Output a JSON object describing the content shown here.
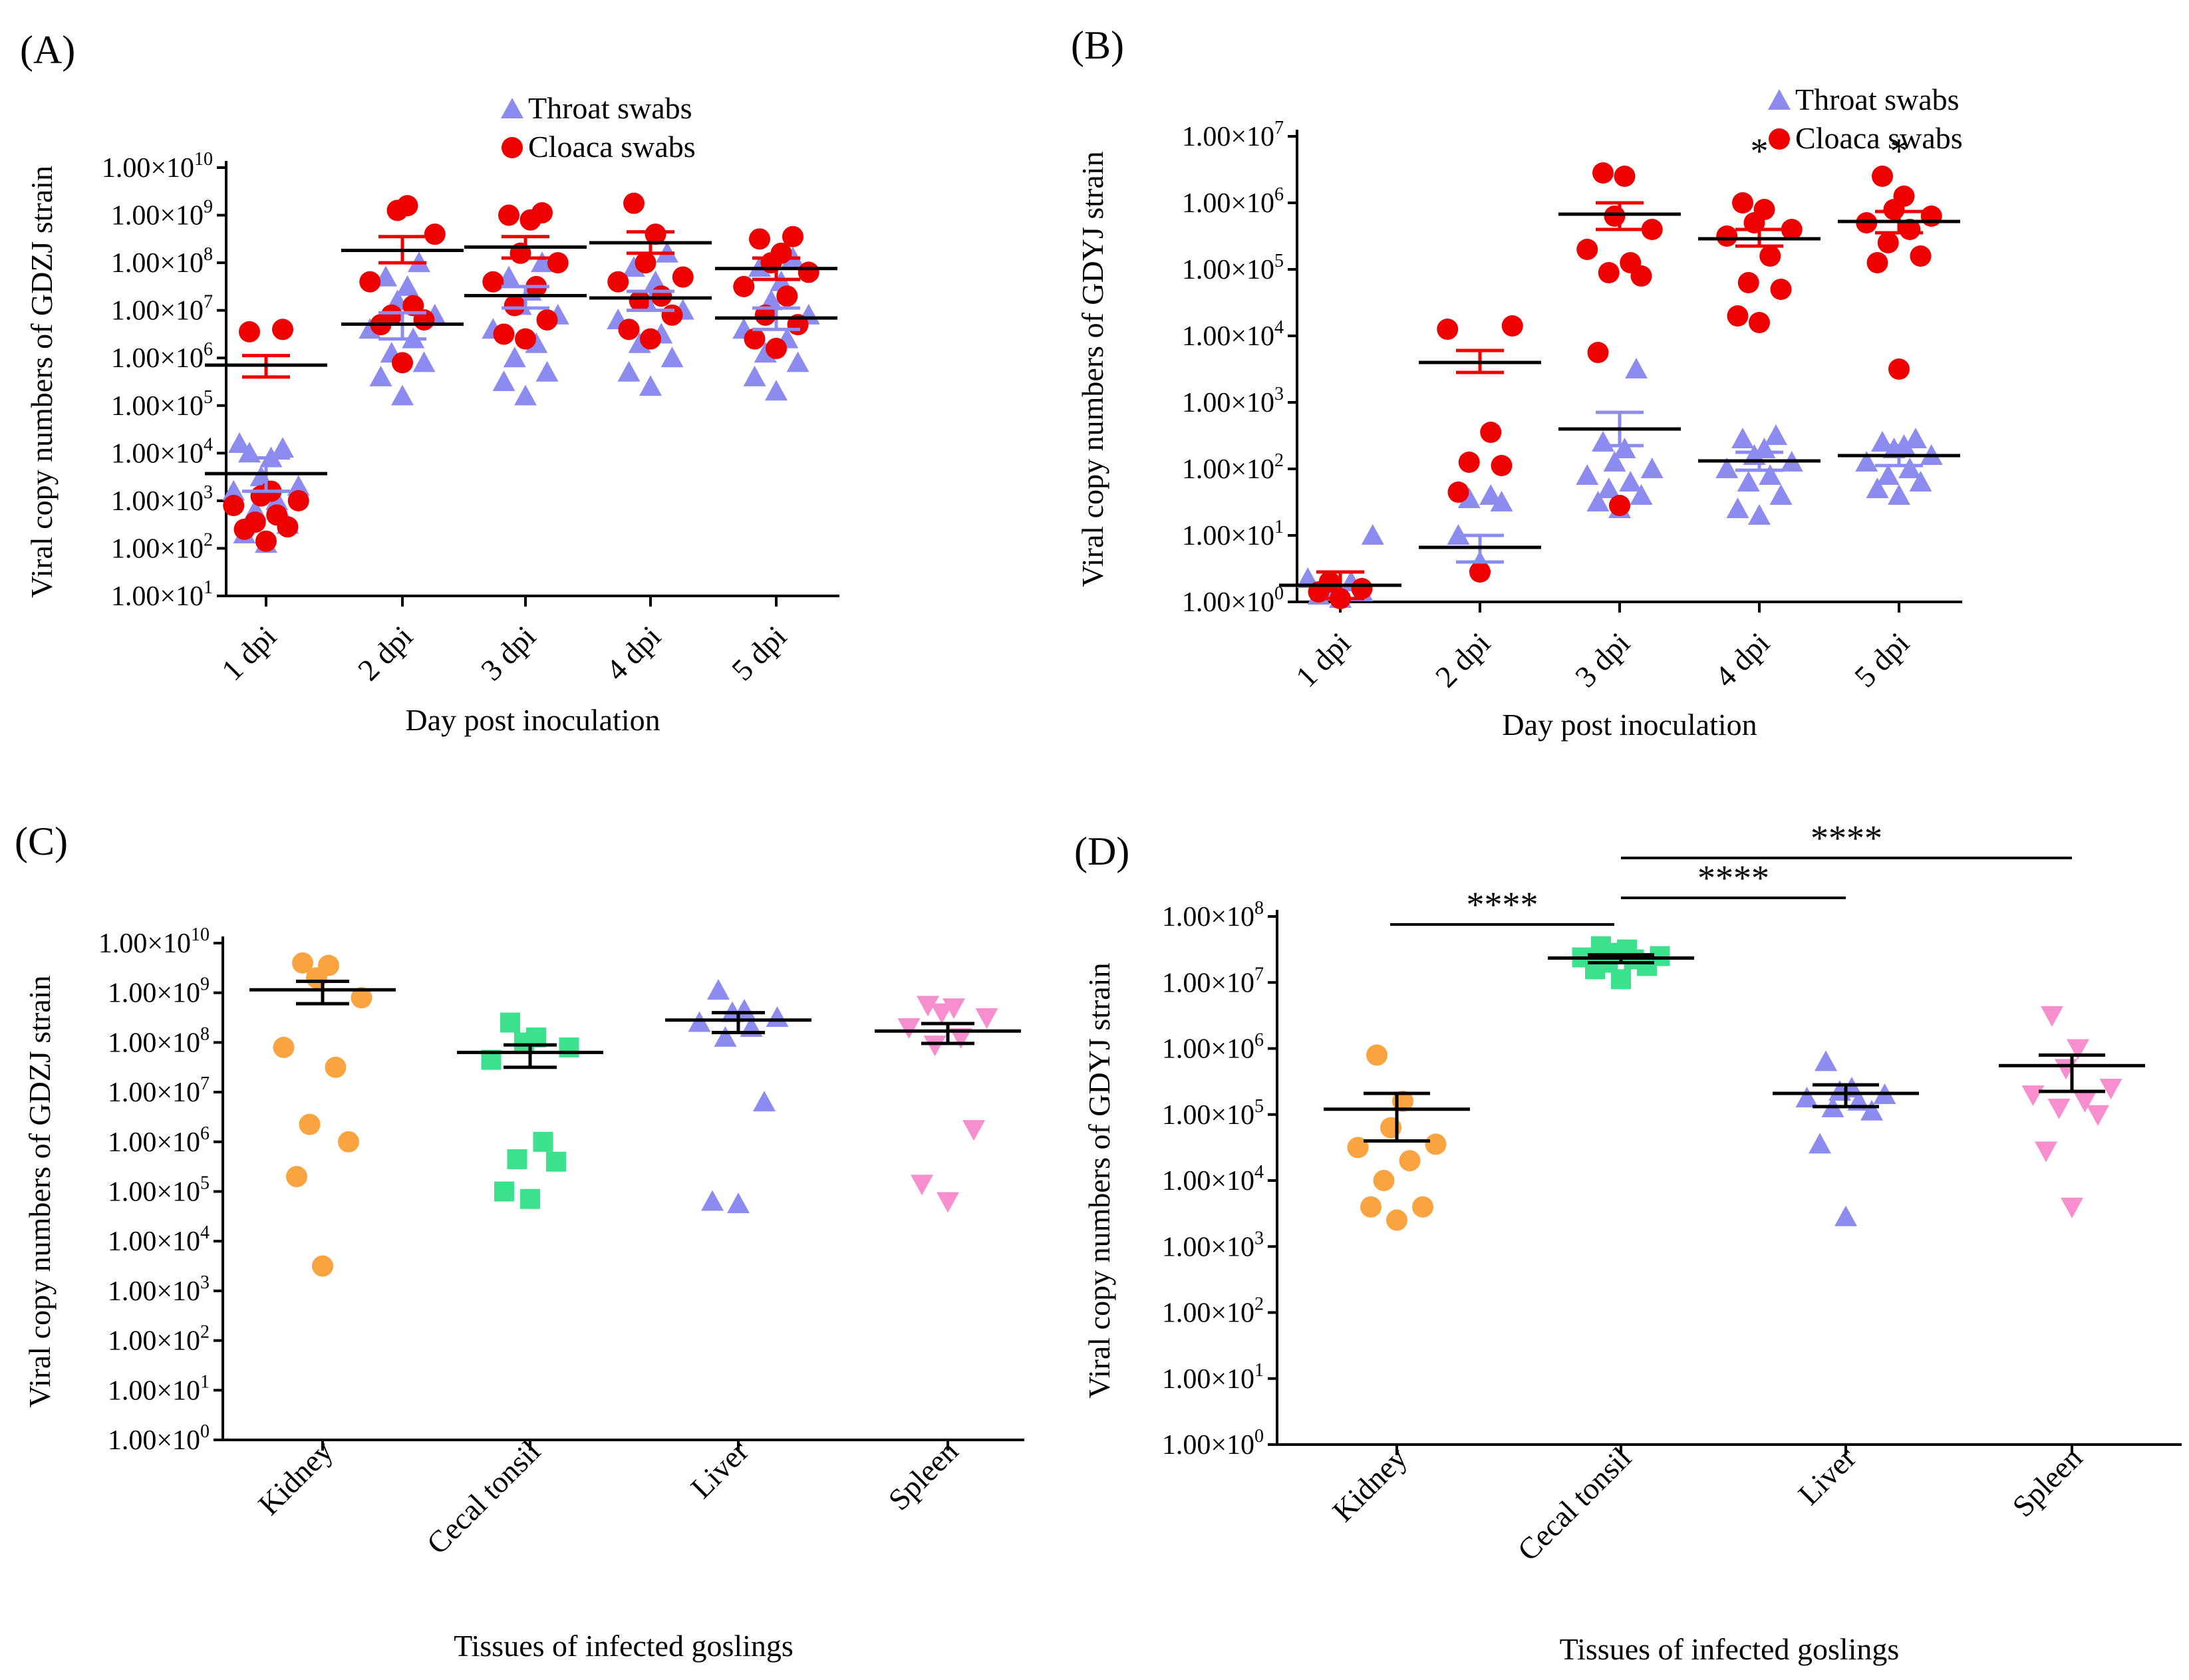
{
  "figure": {
    "chart_data": [
      {
        "id": "A",
        "type": "scatter",
        "scale": "log",
        "panel_label": "(A)",
        "xlabel": "Day post inoculation",
        "ylabel": "Viral copy numbers of GDZJ strain",
        "categories": [
          "1 dpi",
          "2 dpi",
          "3 dpi",
          "4 dpi",
          "5 dpi"
        ],
        "ylim_exp": [
          1,
          10
        ],
        "tick_labels": [
          "1.00×10",
          "1.00×10",
          "1.00×10",
          "1.00×10",
          "1.00×10",
          "1.00×10",
          "1.00×10",
          "1.00×10",
          "1.00×10",
          "1.00×10"
        ],
        "tick_exps": [
          "1",
          "2",
          "3",
          "4",
          "5",
          "6",
          "7",
          "8",
          "9",
          "10"
        ],
        "legend": [
          "Throat swabs",
          "Cloaca swabs"
        ],
        "series": [
          {
            "name": "Throat swabs",
            "marker": "triangle-up",
            "color": "#8b8bf0",
            "mean_exp": [
              3.57,
              6.71,
              7.31,
              7.26,
              6.84
            ],
            "sem_upper_exp": [
              3.9,
              6.95,
              7.5,
              7.4,
              7.05
            ],
            "sem_lower_exp": [
              3.2,
              6.4,
              7.05,
              7.0,
              6.6
            ],
            "points_exp": [
              [
                2.1,
                2.3,
                2.5,
                2.8,
                3.0,
                3.2,
                3.3,
                3.5,
                3.9,
                4.0,
                4.1,
                4.2
              ],
              [
                5.2,
                5.6,
                5.9,
                6.1,
                6.4,
                6.6,
                6.9,
                7.2,
                7.5,
                7.7,
                8.0
              ],
              [
                5.2,
                5.5,
                5.7,
                6.0,
                6.3,
                6.6,
                6.9,
                7.1,
                7.4,
                7.7,
                8.0
              ],
              [
                5.4,
                5.7,
                6.0,
                6.3,
                6.5,
                6.8,
                7.0,
                7.2,
                7.6,
                7.9,
                8.2
              ],
              [
                5.3,
                5.6,
                5.9,
                6.1,
                6.4,
                6.6,
                6.9,
                7.2,
                7.6,
                7.9,
                8.1
              ]
            ]
          },
          {
            "name": "Cloaca swabs",
            "marker": "circle",
            "color": "#ee0000",
            "mean_exp": [
              5.85,
              8.26,
              8.33,
              8.42,
              7.88
            ],
            "sem_upper_exp": [
              6.05,
              8.55,
              8.55,
              8.65,
              8.1
            ],
            "sem_lower_exp": [
              5.6,
              8.0,
              8.1,
              8.2,
              7.65
            ],
            "points_exp": [
              [
                2.15,
                2.4,
                2.45,
                2.55,
                2.7,
                2.9,
                3.0,
                3.1,
                3.2,
                6.55,
                6.6
              ],
              [
                5.9,
                6.7,
                6.8,
                6.9,
                7.1,
                7.6,
                8.6,
                9.1,
                9.2
              ],
              [
                6.4,
                6.5,
                6.8,
                7.1,
                7.5,
                7.6,
                8.0,
                8.2,
                8.9,
                9.0,
                9.05
              ],
              [
                6.4,
                6.6,
                6.9,
                7.2,
                7.3,
                7.6,
                7.7,
                8.0,
                8.6,
                9.25
              ],
              [
                6.2,
                6.4,
                6.7,
                6.9,
                7.3,
                7.5,
                7.8,
                8.0,
                8.2,
                8.5,
                8.55
              ]
            ]
          }
        ],
        "annotations": []
      },
      {
        "id": "B",
        "type": "scatter",
        "scale": "log",
        "panel_label": "(B)",
        "xlabel": "Day post inoculation",
        "ylabel": "Viral copy numbers of GDYJ strain",
        "categories": [
          "1 dpi",
          "2 dpi",
          "3 dpi",
          "4 dpi",
          "5 dpi"
        ],
        "ylim_exp": [
          0,
          7
        ],
        "tick_labels": [
          "1.00×10",
          "1.00×10",
          "1.00×10",
          "1.00×10",
          "1.00×10",
          "1.00×10",
          "1.00×10",
          "1.00×10"
        ],
        "tick_exps": [
          "0",
          "1",
          "2",
          "3",
          "4",
          "5",
          "6",
          "7"
        ],
        "legend": [
          "Throat swabs",
          "Cloaca swabs"
        ],
        "series": [
          {
            "name": "Throat swabs",
            "marker": "triangle-up",
            "color": "#8b8bf0",
            "mean_exp": [
              0.25,
              0.82,
              2.6,
              2.12,
              2.2
            ],
            "sem_upper_exp": [
              0.45,
              1.0,
              2.85,
              2.25,
              2.35
            ],
            "sem_lower_exp": [
              0.05,
              0.6,
              2.35,
              1.98,
              2.05
            ],
            "points_exp": [
              [
                0.05,
                0.1,
                0.15,
                0.2,
                0.3,
                0.35,
                1.0
              ],
              [
                0.6,
                1.0,
                1.5,
                1.55,
                1.6
              ],
              [
                1.4,
                1.5,
                1.6,
                1.7,
                1.8,
                1.9,
                2.0,
                2.1,
                2.3,
                2.4,
                3.5
              ],
              [
                1.3,
                1.4,
                1.6,
                1.8,
                1.9,
                2.0,
                2.1,
                2.2,
                2.3,
                2.45,
                2.5
              ],
              [
                1.6,
                1.7,
                1.8,
                1.9,
                2.0,
                2.1,
                2.2,
                2.3,
                2.35,
                2.4,
                2.45
              ]
            ]
          },
          {
            "name": "Cloaca swabs",
            "marker": "circle",
            "color": "#ee0000",
            "mean_exp": [
              0.25,
              3.6,
              5.83,
              5.46,
              5.72
            ],
            "sem_upper_exp": [
              0.45,
              3.78,
              6.0,
              5.6,
              5.87
            ],
            "sem_lower_exp": [
              0.05,
              3.45,
              5.6,
              5.35,
              5.55
            ],
            "points_exp": [
              [
                0.05,
                0.15,
                0.2,
                0.3
              ],
              [
                0.45,
                1.65,
                2.05,
                2.1,
                2.55,
                4.1,
                4.15
              ],
              [
                1.45,
                3.75,
                4.9,
                4.95,
                5.1,
                5.3,
                5.6,
                5.8,
                6.4,
                6.45
              ],
              [
                4.2,
                4.3,
                4.7,
                4.8,
                5.2,
                5.5,
                5.6,
                5.7,
                5.9,
                6.0
              ],
              [
                3.5,
                5.1,
                5.2,
                5.4,
                5.6,
                5.7,
                5.8,
                5.9,
                6.1,
                6.4
              ]
            ]
          }
        ],
        "annotations": [
          {
            "category": "4 dpi",
            "text": "*"
          },
          {
            "category": "5 dpi",
            "text": "*"
          }
        ]
      },
      {
        "id": "C",
        "type": "scatter",
        "scale": "log",
        "panel_label": "(C)",
        "xlabel": "Tissues of infected goslings",
        "ylabel": "Viral copy numbers of GDZJ strain",
        "categories": [
          "Kidney",
          "Cecal tonsil",
          "Liver",
          "Spleen"
        ],
        "ylim_exp": [
          0,
          10
        ],
        "tick_labels": [
          "1.00×10",
          "1.00×10",
          "1.00×10",
          "1.00×10",
          "1.00×10",
          "1.00×10",
          "1.00×10",
          "1.00×10",
          "1.00×10",
          "1.00×10",
          "1.00×10"
        ],
        "tick_exps": [
          "0",
          "1",
          "2",
          "3",
          "4",
          "5",
          "6",
          "7",
          "8",
          "9",
          "10"
        ],
        "legend": [],
        "groups": [
          {
            "name": "Kidney",
            "marker": "circle",
            "color": "#f9a440",
            "mean_exp": 9.06,
            "sem_upper_exp": 9.23,
            "sem_lower_exp": 8.78,
            "points_exp": [
              3.5,
              5.3,
              6.0,
              6.35,
              7.5,
              7.9,
              8.9,
              9.3,
              9.55,
              9.6
            ]
          },
          {
            "name": "Cecal tonsil",
            "marker": "square",
            "color": "#3de08c",
            "mean_exp": 7.8,
            "sem_upper_exp": 7.95,
            "sem_lower_exp": 7.5,
            "points_exp": [
              4.85,
              5.0,
              5.6,
              5.65,
              6.0,
              7.65,
              7.9,
              8.0,
              8.1,
              8.4
            ]
          },
          {
            "name": "Liver",
            "marker": "triangle-up",
            "color": "#8b8bf0",
            "mean_exp": 8.45,
            "sem_upper_exp": 8.6,
            "sem_lower_exp": 8.2,
            "points_exp": [
              4.75,
              4.8,
              6.8,
              8.1,
              8.3,
              8.4,
              8.5,
              8.6,
              8.65,
              9.05
            ]
          },
          {
            "name": "Spleen",
            "marker": "triangle-down",
            "color": "#f78fcf",
            "mean_exp": 8.23,
            "sem_upper_exp": 8.38,
            "sem_lower_exp": 7.98,
            "points_exp": [
              4.8,
              5.15,
              6.25,
              7.95,
              8.1,
              8.3,
              8.5,
              8.6,
              8.7,
              8.75
            ]
          }
        ],
        "annotations": []
      },
      {
        "id": "D",
        "type": "scatter",
        "scale": "log",
        "panel_label": "(D)",
        "xlabel": "Tissues of infected goslings",
        "ylabel": "Viral copy numbers of GDYJ strain",
        "categories": [
          "Kidney",
          "Cecal tonsil",
          "Liver",
          "Spleen"
        ],
        "ylim_exp": [
          0,
          8
        ],
        "tick_labels": [
          "1.00×10",
          "1.00×10",
          "1.00×10",
          "1.00×10",
          "1.00×10",
          "1.00×10",
          "1.00×10",
          "1.00×10",
          "1.00×10"
        ],
        "tick_exps": [
          "0",
          "1",
          "2",
          "3",
          "4",
          "5",
          "6",
          "7",
          "8"
        ],
        "legend": [],
        "groups": [
          {
            "name": "Kidney",
            "marker": "circle",
            "color": "#f9a440",
            "mean_exp": 5.08,
            "sem_upper_exp": 5.32,
            "sem_lower_exp": 4.6,
            "points_exp": [
              3.4,
              3.6,
              3.6,
              4.0,
              4.3,
              4.5,
              4.55,
              4.8,
              5.2,
              5.9
            ]
          },
          {
            "name": "Cecal tonsil",
            "marker": "square",
            "color": "#3de08c",
            "mean_exp": 7.37,
            "sem_upper_exp": 7.42,
            "sem_lower_exp": 7.3,
            "points_exp": [
              7.05,
              7.2,
              7.25,
              7.3,
              7.35,
              7.38,
              7.4,
              7.45,
              7.5,
              7.55
            ]
          },
          {
            "name": "Liver",
            "marker": "triangle-up",
            "color": "#8b8bf0",
            "mean_exp": 5.32,
            "sem_upper_exp": 5.45,
            "sem_lower_exp": 5.12,
            "points_exp": [
              3.45,
              4.55,
              5.05,
              5.1,
              5.2,
              5.25,
              5.3,
              5.35,
              5.4,
              5.8
            ]
          },
          {
            "name": "Spleen",
            "marker": "triangle-down",
            "color": "#f78fcf",
            "mean_exp": 5.74,
            "sem_upper_exp": 5.9,
            "sem_lower_exp": 5.35,
            "points_exp": [
              3.6,
              4.45,
              5.0,
              5.1,
              5.2,
              5.3,
              5.4,
              5.7,
              6.0,
              6.5
            ]
          }
        ],
        "annotations": [
          {
            "from": "Kidney",
            "to": "Cecal tonsil",
            "text": "****"
          },
          {
            "from": "Cecal tonsil",
            "to": "Liver",
            "text": "****"
          },
          {
            "from": "Cecal tonsil",
            "to": "Spleen",
            "text": "****"
          }
        ]
      }
    ]
  }
}
